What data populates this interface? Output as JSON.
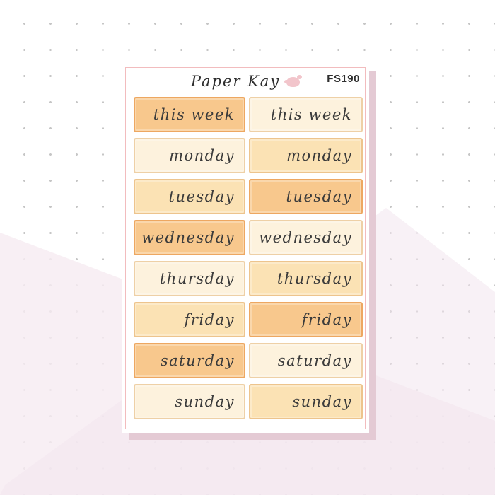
{
  "header": {
    "brand": "Paper Kay",
    "code": "FS190",
    "logo_icon": "paper-kay-bird-logo"
  },
  "sheet": {
    "description": "weekly day header sticker sheet, two columns, script lettering",
    "rows": [
      {
        "label": "this week",
        "left_shade": "mid",
        "right_shade": "cream"
      },
      {
        "label": "monday",
        "left_shade": "cream",
        "right_shade": "peach"
      },
      {
        "label": "tuesday",
        "left_shade": "peach",
        "right_shade": "mid"
      },
      {
        "label": "wednesday",
        "left_shade": "mid",
        "right_shade": "cream"
      },
      {
        "label": "thursday",
        "left_shade": "cream",
        "right_shade": "peach"
      },
      {
        "label": "friday",
        "left_shade": "peach",
        "right_shade": "mid"
      },
      {
        "label": "saturday",
        "left_shade": "mid",
        "right_shade": "cream"
      },
      {
        "label": "sunday",
        "left_shade": "cream",
        "right_shade": "peach"
      }
    ]
  },
  "colors": {
    "shade_mid_fill": "#f8c88d",
    "shade_mid_border": "#eda761",
    "shade_peach_fill": "#fbe2b4",
    "shade_peach_border": "#edc48d",
    "shade_cream_fill": "#fdf2dd",
    "shade_cream_border": "#eed0a6",
    "sheet_frame_pink": "#f2bcbe",
    "sheet_shadow_mauve": "#e4cad4",
    "logo_pink": "#f2c5cb",
    "lettering_text": "#3b3b3b",
    "background_dot_grey": "#c6c6c6",
    "background_pink_wash": "#f6ecf2"
  }
}
